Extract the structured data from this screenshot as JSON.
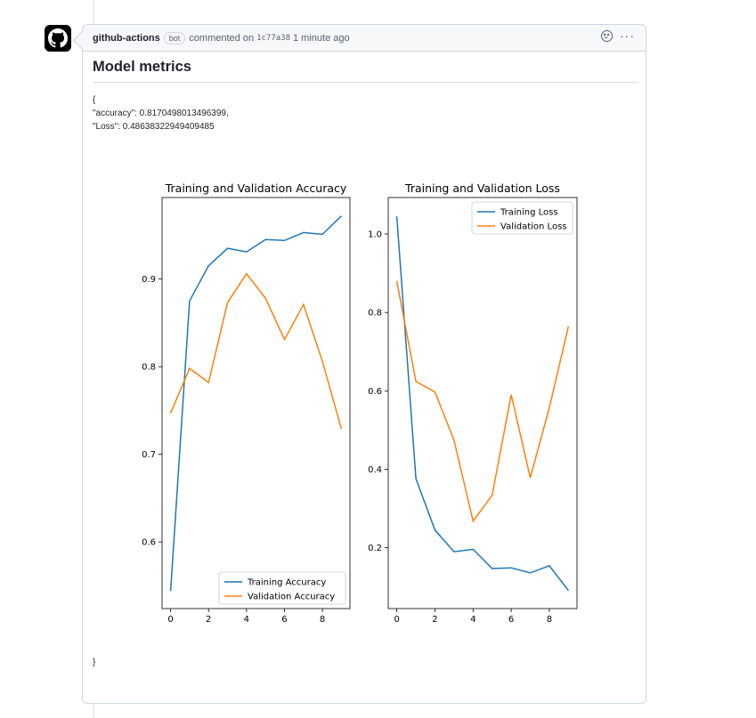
{
  "comment": {
    "author": "github-actions",
    "badge": "bot",
    "action": "commented on",
    "commit": "1c77a38",
    "time": "1 minute ago"
  },
  "icons": {
    "avatar": "github-mark-icon",
    "reaction": "smiley-icon",
    "more": "kebab-icon"
  },
  "body": {
    "title": "Model metrics",
    "json_open": "{",
    "accuracy_line": "\"accuracy\": 0.8170498013496399,",
    "loss_line": "\"Loss\": 0.4863832294940948₅",
    "json_close": "}"
  },
  "chart_data": [
    {
      "type": "line",
      "title": "Training and Validation Accuracy",
      "x": [
        0,
        1,
        2,
        3,
        4,
        5,
        6,
        7,
        8,
        9
      ],
      "series": [
        {
          "name": "Training Accuracy",
          "color": "#1f77b4",
          "values": [
            0.544,
            0.875,
            0.915,
            0.935,
            0.931,
            0.945,
            0.944,
            0.953,
            0.951,
            0.972
          ]
        },
        {
          "name": "Validation Accuracy",
          "color": "#ff7f0e",
          "values": [
            0.747,
            0.798,
            0.782,
            0.873,
            0.906,
            0.878,
            0.831,
            0.871,
            0.806,
            0.729
          ]
        }
      ],
      "xlim": [
        -0.45,
        9.45
      ],
      "ylim": [
        0.524,
        0.993
      ],
      "xticks": [
        0,
        2,
        4,
        6,
        8
      ],
      "yticks": [
        0.6,
        0.7,
        0.8,
        0.9
      ],
      "ytick_labels": [
        "0.6",
        "0.7",
        "0.8",
        "0.9"
      ],
      "legend": "lower-right"
    },
    {
      "type": "line",
      "title": "Training and Validation Loss",
      "x": [
        0,
        1,
        2,
        3,
        4,
        5,
        6,
        7,
        8,
        9
      ],
      "series": [
        {
          "name": "Training Loss",
          "color": "#1f77b4",
          "values": [
            1.045,
            0.376,
            0.245,
            0.19,
            0.196,
            0.147,
            0.149,
            0.136,
            0.154,
            0.091
          ]
        },
        {
          "name": "Validation Loss",
          "color": "#ff7f0e",
          "values": [
            0.88,
            0.624,
            0.597,
            0.474,
            0.268,
            0.334,
            0.59,
            0.379,
            0.557,
            0.765
          ]
        }
      ],
      "xlim": [
        -0.45,
        9.45
      ],
      "ylim": [
        0.045,
        1.093
      ],
      "xticks": [
        0,
        2,
        4,
        6,
        8
      ],
      "yticks": [
        0.2,
        0.4,
        0.6,
        0.8,
        1.0
      ],
      "ytick_labels": [
        "0.2",
        "0.4",
        "0.6",
        "0.8",
        "1.0"
      ],
      "legend": "upper-right"
    }
  ]
}
